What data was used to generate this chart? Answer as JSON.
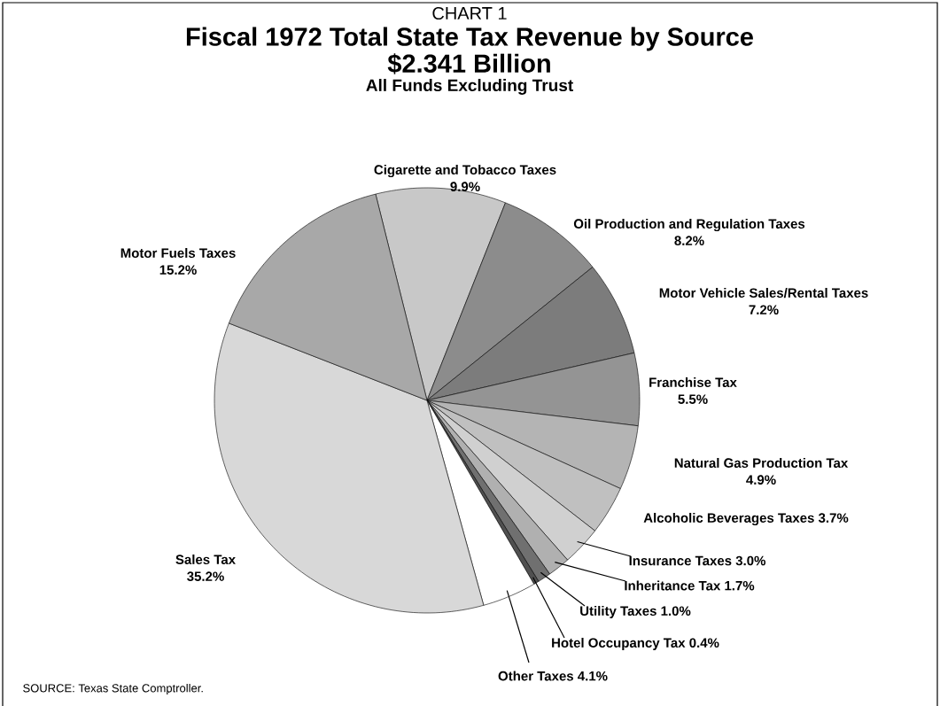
{
  "chart_data": {
    "type": "pie",
    "title": "Fiscal 1972 Total State Tax Revenue by Source",
    "subtitle": "$2.341 Billion",
    "annotations": [
      "CHART 1",
      "All Funds Excluding Trust",
      "SOURCE: Texas State Comptroller."
    ],
    "categories": [
      "Cigarette and Tobacco Taxes",
      "Oil Production and Regulation Taxes",
      "Motor Vehicle Sales/Rental Taxes",
      "Franchise Tax",
      "Natural Gas Production Tax",
      "Alcoholic Beverages Taxes",
      "Insurance Taxes",
      "Inheritance Tax",
      "Utility Taxes",
      "Hotel Occupancy Tax",
      "Other Taxes",
      "Sales Tax",
      "Motor Fuels Taxes"
    ],
    "values": [
      9.9,
      8.2,
      7.2,
      5.5,
      4.9,
      3.7,
      3.0,
      1.7,
      1.0,
      0.4,
      4.1,
      35.2,
      15.2
    ],
    "value_labels": [
      "9.9%",
      "8.2%",
      "7.2%",
      "5.5%",
      "4.9%",
      "3.7%",
      "3.0%",
      "1.7%",
      "1.0%",
      "0.4%",
      "4.1%",
      "35.2%",
      "15.2%"
    ],
    "colors": [
      "#c8c8c8",
      "#8c8c8c",
      "#7c7c7c",
      "#949494",
      "#b4b4b4",
      "#c0c0c0",
      "#d0d0d0",
      "#b0b0b0",
      "#707070",
      "#505050",
      "#ffffff",
      "#d8d8d8",
      "#a8a8a8"
    ]
  }
}
